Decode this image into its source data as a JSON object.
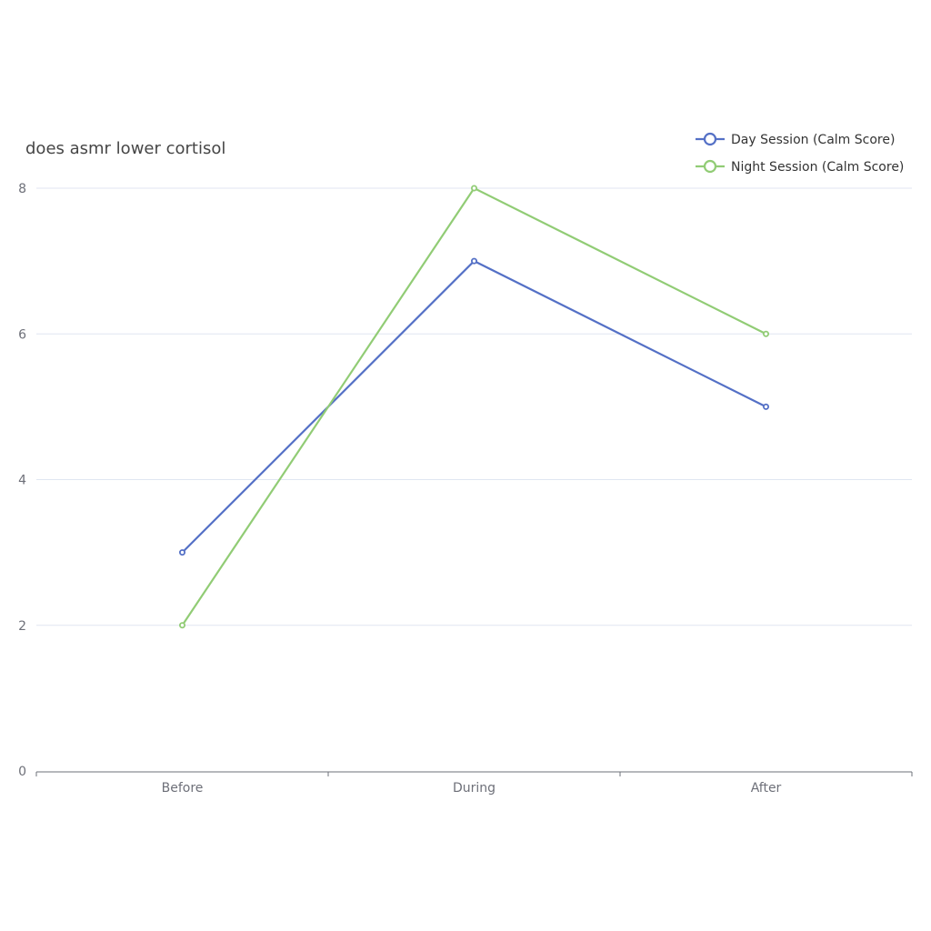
{
  "chart_data": {
    "type": "line",
    "title": "does asmr lower cortisol",
    "categories": [
      "Before",
      "During",
      "After"
    ],
    "series": [
      {
        "name": "Day Session (Calm Score)",
        "values": [
          3,
          7,
          5
        ],
        "color": "#5470c6"
      },
      {
        "name": "Night Session (Calm Score)",
        "values": [
          2,
          8,
          6
        ],
        "color": "#91cc75"
      }
    ],
    "xlabel": "",
    "ylabel": "",
    "ylim": [
      0,
      8
    ],
    "yticks": [
      0,
      2,
      4,
      6,
      8
    ],
    "grid": true,
    "legend_position": "top-right"
  }
}
